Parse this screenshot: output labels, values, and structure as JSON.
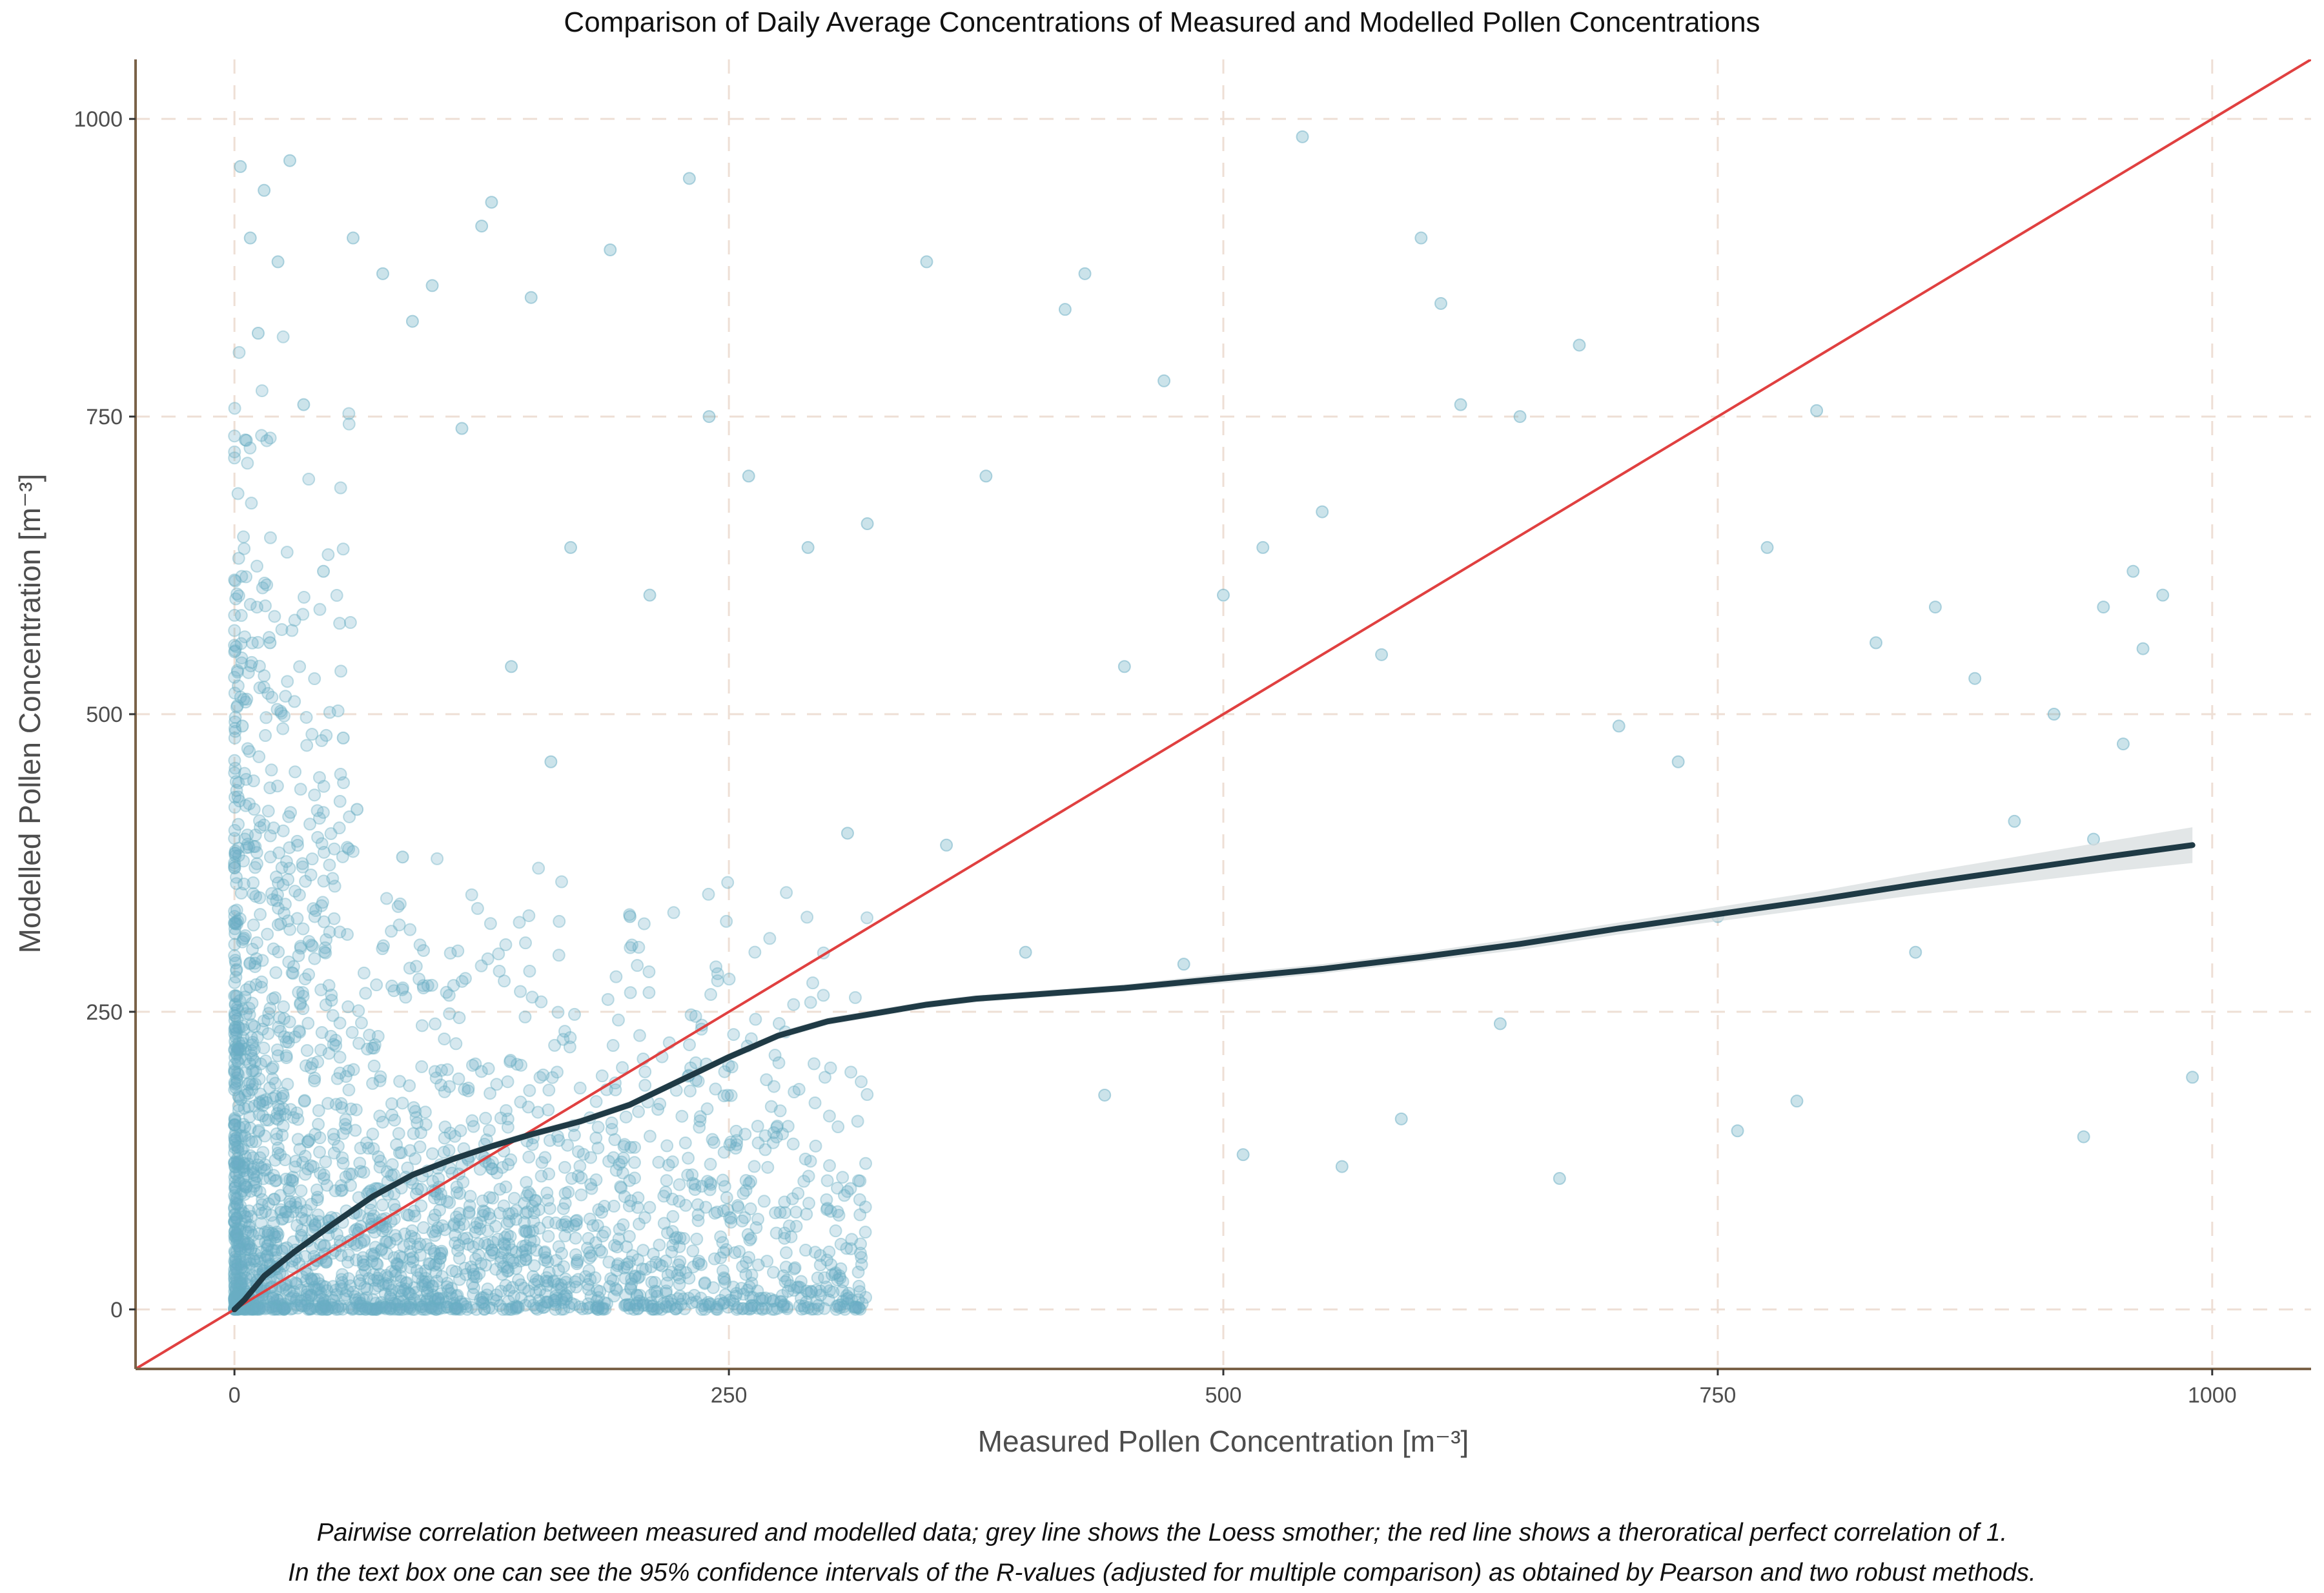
{
  "chart_data": {
    "type": "scatter",
    "title": "Comparison of Daily Average Concentrations of Measured and Modelled Pollen Concentrations",
    "xlabel": "Measured Pollen Concentration [m⁻³]",
    "ylabel": "Modelled Pollen Concentration [m⁻³]",
    "xlim": [
      -50,
      1050
    ],
    "ylim": [
      -50,
      1050
    ],
    "xticks": [
      "0",
      "250",
      "500",
      "750",
      "1000"
    ],
    "yticks": [
      "0",
      "250",
      "500",
      "750",
      "1000"
    ],
    "grid": true,
    "legend": "none",
    "caption": [
      "Pairwise correlation between measured and modelled data; grey line shows the Loess smother; the red line shows a theroratical perfect correlation of 1.",
      "In the text box one can see the 95% confidence intervals of the R-values (adjusted for multiple comparison) as obtained by Pearson and two robust methods."
    ],
    "colors": {
      "points": "#6aaec4",
      "loess": "#1f3a45",
      "confidence_band": "#d5dcdd",
      "identity_line": "#e04040",
      "grid": "#eedfd5",
      "axis": "#7a6248"
    },
    "identity_line": {
      "slope": 1,
      "intercept": 0
    },
    "loess": {
      "x": [
        0,
        5,
        15,
        30,
        50,
        70,
        90,
        110,
        130,
        150,
        175,
        200,
        225,
        250,
        275,
        300,
        325,
        350,
        375,
        400,
        450,
        500,
        550,
        600,
        650,
        700,
        750,
        800,
        850,
        900,
        950,
        990
      ],
      "y": [
        0,
        8,
        28,
        48,
        72,
        95,
        113,
        126,
        137,
        147,
        158,
        172,
        192,
        212,
        230,
        242,
        249,
        256,
        261,
        264,
        270,
        278,
        286,
        296,
        307,
        320,
        332,
        344,
        357,
        369,
        381,
        390
      ],
      "band_halfwidth": [
        3,
        3,
        3,
        3,
        3,
        3,
        3,
        3,
        3,
        3,
        3,
        3,
        3,
        3,
        3,
        3,
        3,
        3,
        3,
        3,
        3,
        4,
        4,
        4,
        5,
        5,
        6,
        7,
        9,
        11,
        13,
        15
      ]
    },
    "points_sampled": {
      "x": [
        3,
        8,
        15,
        22,
        28,
        35,
        45,
        60,
        75,
        90,
        100,
        115,
        130,
        150,
        170,
        190,
        210,
        230,
        260,
        290,
        320,
        350,
        380,
        420,
        450,
        470,
        500,
        520,
        550,
        580,
        600,
        620,
        650,
        680,
        700,
        730,
        750,
        775,
        800,
        830,
        860,
        880,
        900,
        920,
        940,
        960,
        975,
        990,
        430,
        540,
        590,
        610,
        240,
        125,
        12,
        4,
        6,
        18,
        55,
        62,
        85,
        140,
        160,
        200,
        310,
        360,
        400,
        440,
        480,
        510,
        560,
        640,
        670,
        760,
        790,
        850,
        935,
        955,
        965,
        945
      ],
      "y": [
        960,
        900,
        940,
        880,
        965,
        760,
        620,
        900,
        870,
        830,
        860,
        740,
        930,
        850,
        640,
        890,
        600,
        950,
        700,
        640,
        660,
        880,
        700,
        840,
        540,
        780,
        600,
        640,
        670,
        550,
        900,
        760,
        750,
        810,
        490,
        460,
        330,
        640,
        755,
        560,
        590,
        530,
        410,
        500,
        395,
        620,
        600,
        195,
        870,
        985,
        160,
        845,
        750,
        910,
        820,
        490,
        730,
        560,
        480,
        420,
        380,
        540,
        460,
        330,
        400,
        390,
        300,
        180,
        290,
        130,
        120,
        240,
        110,
        150,
        175,
        300,
        145,
        475,
        555,
        590
      ]
    }
  }
}
